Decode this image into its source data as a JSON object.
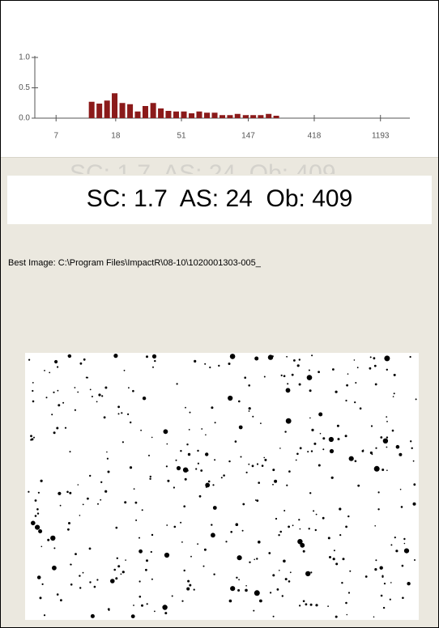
{
  "chart_data": {
    "type": "bar",
    "x": [
      12.3,
      13.9,
      15.7,
      17.7,
      20.0,
      22.6,
      25.5,
      28.8,
      32.6,
      36.8,
      41.5,
      46.9,
      53.0,
      59.9,
      67.6,
      76.4,
      86.3,
      97.5,
      110,
      124,
      141,
      159,
      179,
      203,
      229
    ],
    "values": [
      0.27,
      0.24,
      0.29,
      0.41,
      0.25,
      0.23,
      0.11,
      0.2,
      0.25,
      0.16,
      0.12,
      0.11,
      0.11,
      0.08,
      0.11,
      0.09,
      0.09,
      0.05,
      0.05,
      0.07,
      0.05,
      0.05,
      0.05,
      0.07,
      0.04
    ],
    "color": "#8b1a1a",
    "xscale": "log",
    "xlim": [
      5,
      1900
    ],
    "xticks": [
      7,
      18,
      51,
      147,
      418,
      1193
    ],
    "ylim": [
      0,
      1
    ],
    "yticks": [
      {
        "value": 0,
        "label": "0.0"
      },
      {
        "value": 0.5,
        "label": "0.5"
      },
      {
        "value": 1,
        "label": "1.0"
      }
    ]
  },
  "score_line": "SC: 1.7  AS: 24  Ob: 409",
  "best_image": "Best Image: C:\\Program Files\\ImpactR\\08-10\\1020001303-005_"
}
